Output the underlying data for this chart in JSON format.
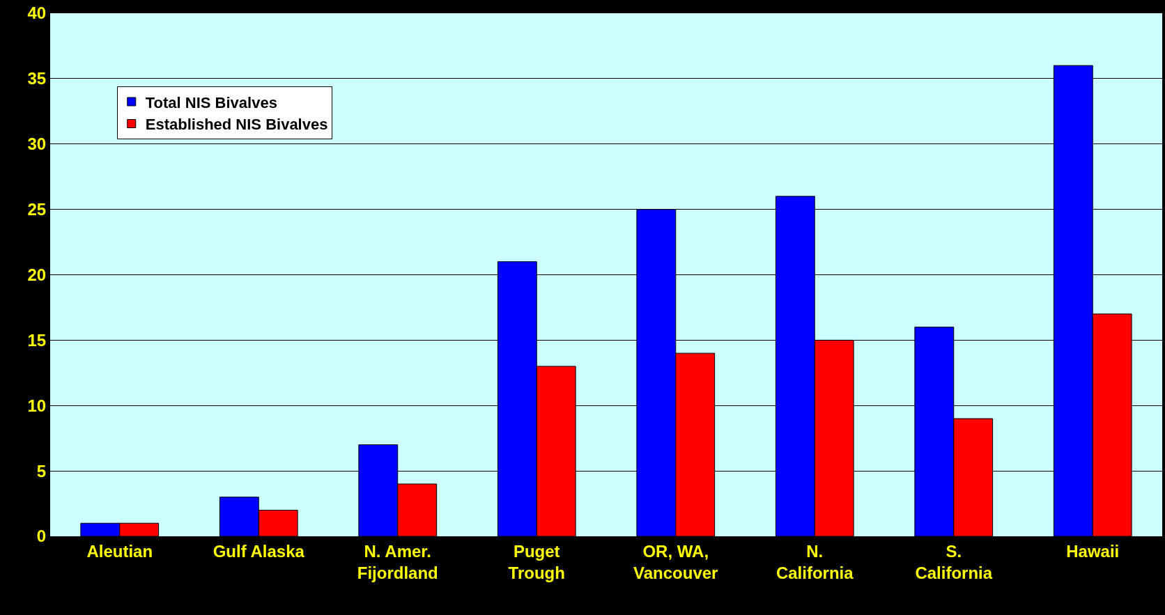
{
  "chart_data": {
    "type": "bar",
    "categories": [
      "Aleutian",
      "Gulf Alaska",
      "N. Amer.\nFijordland",
      "Puget\nTrough",
      "OR, WA,\nVancouver",
      "N.\nCalifornia",
      "S.\nCalifornia",
      "Hawaii"
    ],
    "series": [
      {
        "name": "Total NIS Bivalves",
        "color": "#0000ff",
        "values": [
          1,
          3,
          7,
          21,
          25,
          26,
          16,
          36
        ]
      },
      {
        "name": "Established NIS Bivalves",
        "color": "#ff0000",
        "values": [
          1,
          2,
          4,
          13,
          14,
          15,
          9,
          17
        ]
      }
    ],
    "ylim": [
      0,
      40
    ],
    "yticks": [
      0,
      5,
      10,
      15,
      20,
      25,
      30,
      35,
      40
    ],
    "grid": "y",
    "legend": "top left"
  }
}
